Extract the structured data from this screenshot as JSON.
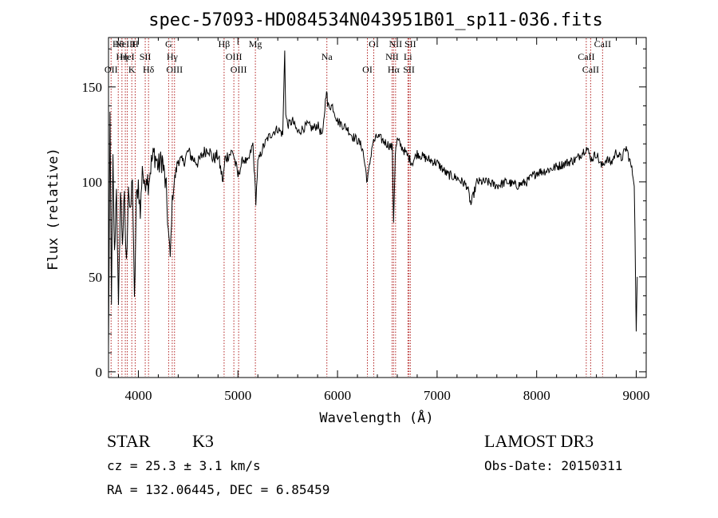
{
  "chart_data": {
    "type": "line",
    "title": "spec-57093-HD084534N043951B01_sp11-036.fits",
    "xlabel": "Wavelength (Å)",
    "ylabel": "Flux (relative)",
    "xlim": [
      3700,
      9100
    ],
    "ylim": [
      -3,
      176
    ],
    "xticks": [
      4000,
      5000,
      6000,
      7000,
      8000,
      9000
    ],
    "yticks": [
      0,
      50,
      100,
      150
    ],
    "xtick_labels": [
      "4000",
      "5000",
      "6000",
      "7000",
      "8000",
      "9000"
    ],
    "ytick_labels": [
      "0",
      "50",
      "100",
      "150"
    ],
    "series": [
      {
        "name": "flux",
        "x": [
          3700,
          3715,
          3730,
          3745,
          3760,
          3780,
          3800,
          3820,
          3840,
          3860,
          3880,
          3900,
          3920,
          3940,
          3960,
          3980,
          4000,
          4020,
          4040,
          4060,
          4080,
          4100,
          4130,
          4160,
          4200,
          4240,
          4280,
          4300,
          4320,
          4340,
          4360,
          4400,
          4450,
          4500,
          4550,
          4600,
          4650,
          4700,
          4750,
          4800,
          4850,
          4870,
          4900,
          4950,
          5000,
          5050,
          5100,
          5150,
          5180,
          5200,
          5250,
          5300,
          5350,
          5400,
          5450,
          5470,
          5480,
          5500,
          5550,
          5600,
          5650,
          5700,
          5750,
          5800,
          5850,
          5890,
          5900,
          5950,
          6000,
          6050,
          6100,
          6150,
          6200,
          6250,
          6300,
          6350,
          6400,
          6450,
          6500,
          6550,
          6563,
          6580,
          6600,
          6650,
          6700,
          6750,
          6800,
          6900,
          7000,
          7100,
          7200,
          7300,
          7340,
          7400,
          7500,
          7600,
          7700,
          7800,
          7900,
          8000,
          8100,
          8200,
          8300,
          8400,
          8500,
          8550,
          8600,
          8650,
          8700,
          8750,
          8800,
          8850,
          8900,
          8950,
          8980,
          9000,
          9010
        ],
        "y": [
          10,
          130,
          40,
          110,
          60,
          100,
          30,
          95,
          70,
          90,
          55,
          100,
          80,
          105,
          35,
          90,
          100,
          82,
          110,
          95,
          105,
          100,
          110,
          115,
          108,
          112,
          95,
          75,
          60,
          90,
          100,
          112,
          110,
          116,
          112,
          110,
          115,
          118,
          112,
          114,
          100,
          112,
          114,
          116,
          103,
          112,
          110,
          120,
          90,
          110,
          118,
          123,
          126,
          128,
          125,
          170,
          135,
          130,
          132,
          126,
          128,
          130,
          128,
          130,
          124,
          150,
          140,
          140,
          132,
          130,
          128,
          124,
          122,
          118,
          100,
          120,
          124,
          122,
          120,
          118,
          80,
          115,
          122,
          118,
          114,
          110,
          115,
          112,
          110,
          104,
          102,
          98,
          88,
          100,
          100,
          98,
          100,
          98,
          100,
          105,
          106,
          108,
          110,
          112,
          118,
          112,
          115,
          108,
          112,
          110,
          116,
          112,
          118,
          108,
          100,
          20,
          50
        ]
      }
    ],
    "emission_lines": [
      {
        "wave": 3798,
        "label": "Hθ"
      },
      {
        "wave": 3835,
        "label": "Hη"
      },
      {
        "wave": 3726,
        "label": "OII"
      },
      {
        "wave": 3869,
        "label": "NeIII"
      },
      {
        "wave": 3889,
        "label": "HeI"
      },
      {
        "wave": 3934,
        "label": "K"
      },
      {
        "wave": 3968,
        "label": "H"
      },
      {
        "wave": 4069,
        "label": "SII"
      },
      {
        "wave": 4102,
        "label": "Hδ"
      },
      {
        "wave": 4304,
        "label": "G"
      },
      {
        "wave": 4340,
        "label": "Hγ"
      },
      {
        "wave": 4363,
        "label": "OIII"
      },
      {
        "wave": 4861,
        "label": "Hβ"
      },
      {
        "wave": 4959,
        "label": "OIII"
      },
      {
        "wave": 5007,
        "label": "OIII"
      },
      {
        "wave": 5175,
        "label": "Mg"
      },
      {
        "wave": 5893,
        "label": "Na"
      },
      {
        "wave": 6300,
        "label": "OI"
      },
      {
        "wave": 6364,
        "label": "OI"
      },
      {
        "wave": 6548,
        "label": "NII"
      },
      {
        "wave": 6563,
        "label": "Hα"
      },
      {
        "wave": 6583,
        "label": "NII"
      },
      {
        "wave": 6707,
        "label": "Li"
      },
      {
        "wave": 6717,
        "label": "SII"
      },
      {
        "wave": 6731,
        "label": "SII"
      },
      {
        "wave": 8498,
        "label": "CaII"
      },
      {
        "wave": 8542,
        "label": "CaII"
      },
      {
        "wave": 8662,
        "label": "CaII"
      }
    ]
  },
  "info": {
    "class_label": "STAR",
    "subclass": "K3",
    "survey": "LAMOST DR3",
    "redshift": "cz = 25.3 ± 3.1 km/s",
    "obs_date": "Obs-Date: 20150311",
    "coords": "RA = 132.06445, DEC =   6.85459"
  },
  "colors": {
    "line_marker": "#b22222",
    "spectrum": "#000000"
  }
}
